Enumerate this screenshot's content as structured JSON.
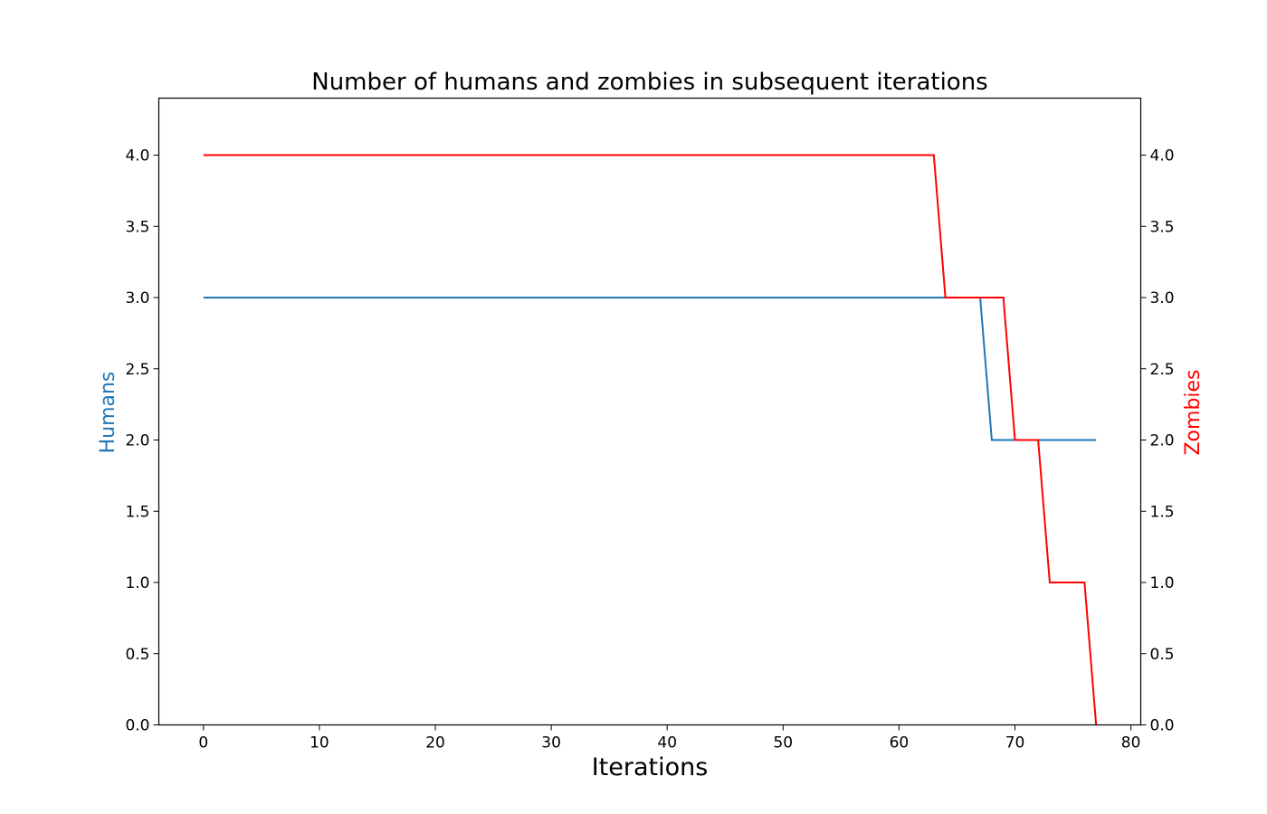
{
  "chart_data": {
    "type": "line",
    "title": "Number of humans and zombies in subsequent iterations",
    "xlabel": "Iterations",
    "ylabel_left": "Humans",
    "ylabel_right": "Zombies",
    "xlim": [
      -3.85,
      80.85
    ],
    "ylim": [
      0,
      4.4
    ],
    "xticks": [
      0,
      10,
      20,
      30,
      40,
      50,
      60,
      70,
      80
    ],
    "yticks": [
      0.0,
      0.5,
      1.0,
      1.5,
      2.0,
      2.5,
      3.0,
      3.5,
      4.0
    ],
    "ytick_labels": [
      "0.0",
      "0.5",
      "1.0",
      "1.5",
      "2.0",
      "2.5",
      "3.0",
      "3.5",
      "4.0"
    ],
    "grid": false,
    "series": [
      {
        "name": "Humans",
        "axis": "left",
        "color": "#1f77b4",
        "x": [
          0,
          67,
          68,
          77
        ],
        "y": [
          3,
          3,
          2,
          2
        ]
      },
      {
        "name": "Zombies",
        "axis": "right",
        "color": "#ff0000",
        "x": [
          0,
          63,
          64,
          69,
          70,
          72,
          73,
          76,
          77
        ],
        "y": [
          4,
          4,
          3,
          3,
          2,
          2,
          1,
          1,
          0
        ]
      }
    ]
  }
}
